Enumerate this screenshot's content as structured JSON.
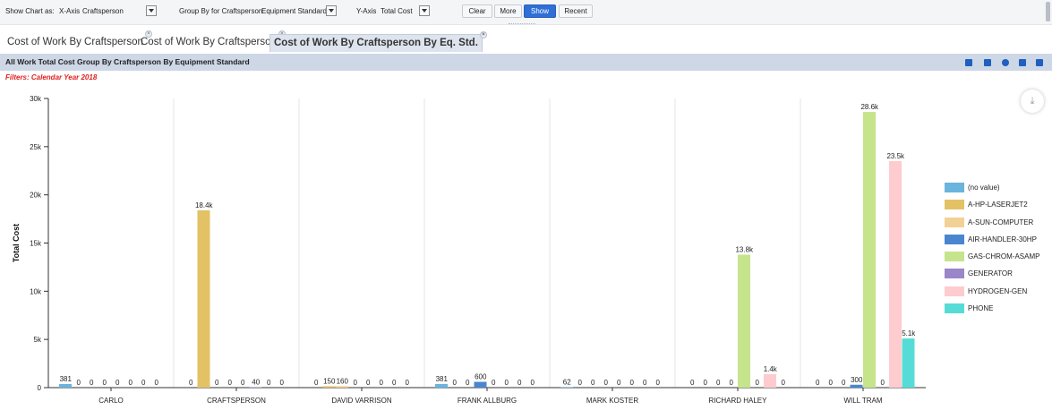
{
  "toolbar": {
    "show_chart_label": "Show Chart as:",
    "xaxis_label": "X-Axis",
    "xaxis_value": "Craftsperson",
    "groupby_label": "Group By for Craftsperson",
    "groupby_value": "Equipment Standard",
    "yaxis_label": "Y-Axis",
    "yaxis_value": "Total Cost",
    "clear_label": "Clear",
    "more_label": "More",
    "show_label": "Show",
    "recent_label": "Recent"
  },
  "tabs": [
    {
      "label": "Cost of Work By Craftsperson"
    },
    {
      "label": "Cost of Work By Craftsperson"
    },
    {
      "label": "Cost of Work By Craftsperson By Eq. Std."
    }
  ],
  "panel": {
    "title": "All Work Total Cost Group By Craftsperson By Equipment Standard",
    "filters": "Filters: Calendar Year 2018"
  },
  "chart_data": {
    "type": "bar",
    "ylabel": "Total Cost",
    "ylim": [
      0,
      30000
    ],
    "yticks": [
      "0",
      "5k",
      "10k",
      "15k",
      "20k",
      "25k",
      "30k"
    ],
    "categories": [
      "CARLO",
      "CRAFTSPERSON",
      "DAVID VARRISON",
      "FRANK ALLBURG",
      "MARK KOSTER",
      "RICHARD HALEY",
      "WILL TRAM"
    ],
    "series": [
      {
        "name": "(no value)",
        "color": "#6ab4dd",
        "values": [
          381,
          0,
          0,
          381,
          62,
          0,
          0
        ],
        "labels": [
          "381",
          "0",
          "0",
          "381",
          "62",
          "0",
          "0"
        ]
      },
      {
        "name": "A-HP-LASERJET2",
        "color": "#e3c266",
        "values": [
          0,
          18400,
          150,
          0,
          0,
          0,
          0
        ],
        "labels": [
          "0",
          "18.4k",
          "150",
          "0",
          "0",
          "0",
          "0"
        ]
      },
      {
        "name": "A-SUN-COMPUTER",
        "color": "#f2d196",
        "values": [
          0,
          0,
          160,
          0,
          0,
          0,
          0
        ],
        "labels": [
          "0",
          "0",
          "160",
          "0",
          "0",
          "0",
          "0"
        ]
      },
      {
        "name": "AIR-HANDLER-30HP",
        "color": "#4a86cf",
        "values": [
          0,
          0,
          0,
          600,
          0,
          0,
          300
        ],
        "labels": [
          "0",
          "0",
          "0",
          "600",
          "0",
          "0",
          "300"
        ]
      },
      {
        "name": "GAS-CHROM-ASAMP",
        "color": "#c6e48c",
        "values": [
          0,
          0,
          0,
          0,
          0,
          13800,
          28600
        ],
        "labels": [
          "0",
          "0",
          "0",
          "0",
          "0",
          "13.8k",
          "28.6k"
        ]
      },
      {
        "name": "GENERATOR",
        "color": "#9a86c8",
        "values": [
          0,
          40,
          0,
          0,
          0,
          0,
          0
        ],
        "labels": [
          "0",
          "40",
          "0",
          "0",
          "0",
          "0",
          "0"
        ]
      },
      {
        "name": "HYDROGEN-GEN",
        "color": "#fecbcf",
        "values": [
          0,
          0,
          0,
          0,
          0,
          1400,
          23500
        ],
        "labels": [
          "0",
          "0",
          "0",
          "0",
          "0",
          "1.4k",
          "23.5k"
        ]
      },
      {
        "name": "PHONE",
        "color": "#55dcd6",
        "values": [
          0,
          0,
          0,
          0,
          0,
          0,
          5100
        ],
        "labels": [
          "0",
          "0",
          "0",
          "0",
          "0",
          "0",
          "5.1k"
        ]
      }
    ],
    "legend_position": "right",
    "grid": "vertical category separators"
  }
}
